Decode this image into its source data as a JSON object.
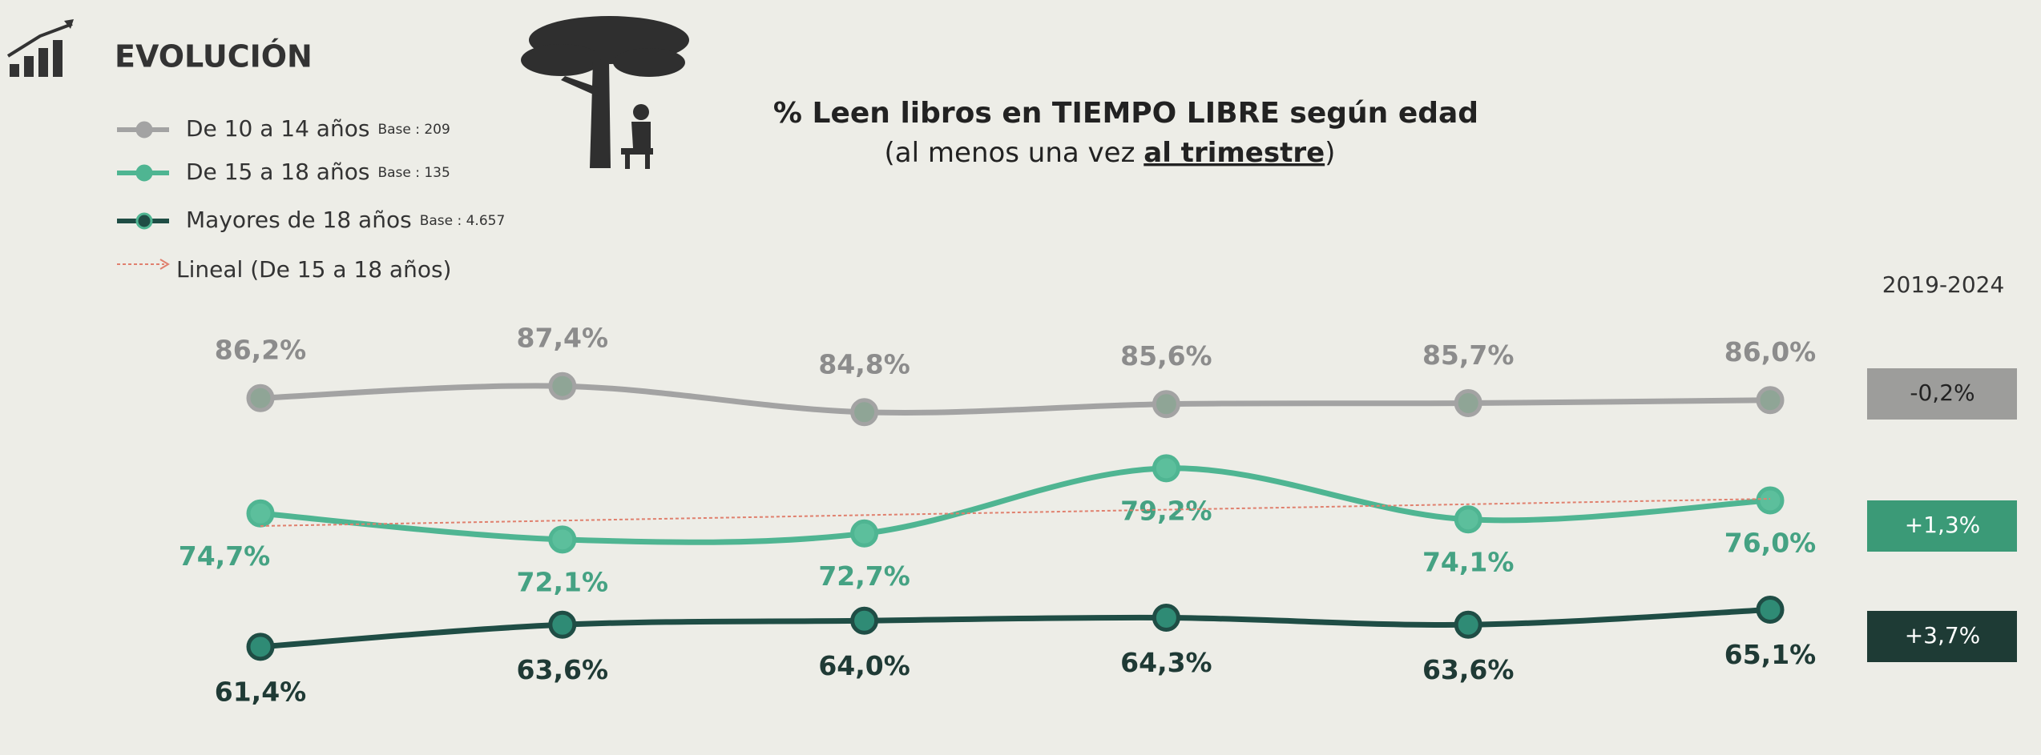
{
  "header": "EVOLUCIÓN",
  "chart_data": {
    "type": "line",
    "title": "% Leen libros en TIEMPO LIBRE según edad",
    "subtitle_parts": [
      "(al menos una vez ",
      "al trimestre",
      ")"
    ],
    "categories": [
      null,
      null,
      null,
      null,
      null,
      null
    ],
    "ylim": [
      55,
      95
    ],
    "change_header": "2019-2024",
    "series": [
      {
        "name": "De 10 a 14 años",
        "base": "Base : 209",
        "color": "#a3a3a3",
        "label_color": "#8c8c8c",
        "values": [
          86.2,
          87.4,
          84.8,
          85.6,
          85.7,
          86.0
        ],
        "value_labels": [
          "86,2%",
          "87,4%",
          "84,8%",
          "85,6%",
          "85,7%",
          "86,0%"
        ],
        "change": -0.2,
        "change_label": "-0,2%",
        "change_color": "#9d9d9b"
      },
      {
        "name": "De 15 a 18 años",
        "base": "Base : 135",
        "color": "#4fb592",
        "label_color": "#45a283",
        "values": [
          74.7,
          72.1,
          72.7,
          79.2,
          74.1,
          76.0
        ],
        "value_labels": [
          "74,7%",
          "72,1%",
          "72,7%",
          "79,2%",
          "74,1%",
          "76,0%"
        ],
        "change": 1.3,
        "change_label": "+1,3%",
        "change_color": "#3b9a77",
        "trendline": {
          "name": "Lineal (De 15 a 18 años)",
          "color": "#e0806e"
        }
      },
      {
        "name": "Mayores de 18 años",
        "base": "Base : 4.657",
        "color": "#1f4d45",
        "label_color": "#1f3a35",
        "values": [
          61.4,
          63.6,
          64.0,
          64.3,
          63.6,
          65.1
        ],
        "value_labels": [
          "61,4%",
          "63,6%",
          "64,0%",
          "64,3%",
          "63,6%",
          "65,1%"
        ],
        "change": 3.7,
        "change_label": "+3,7%",
        "change_color": "#1e3b35"
      }
    ]
  }
}
